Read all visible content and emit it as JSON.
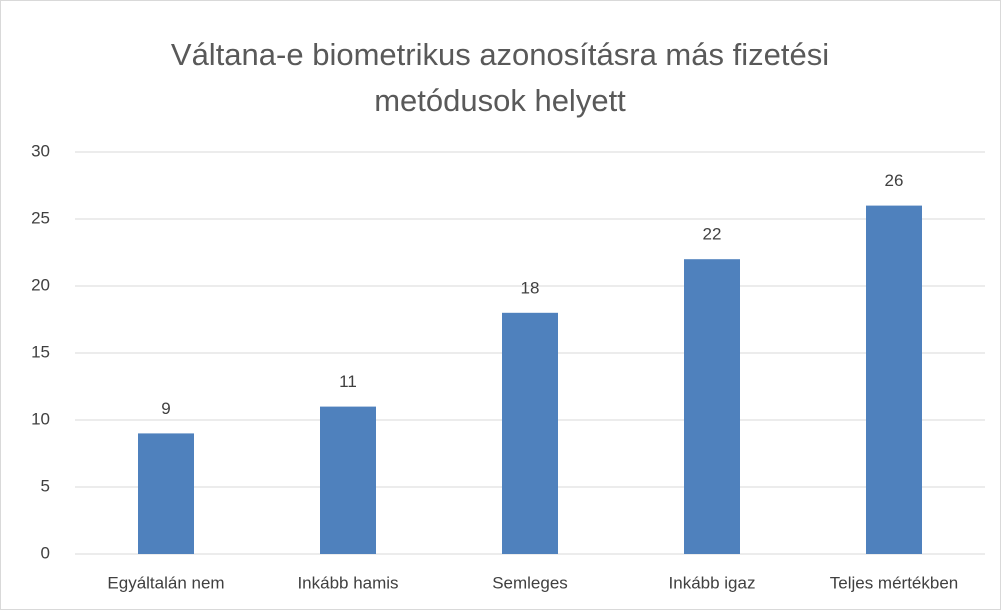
{
  "chart_data": {
    "type": "bar",
    "title": "Váltana-e biometrikus azonosításra más fizetési metódusok helyett",
    "categories": [
      "Egyáltalán nem",
      "Inkább hamis",
      "Semleges",
      "Inkább igaz",
      "Teljes mértékben"
    ],
    "values": [
      9,
      11,
      18,
      22,
      26
    ],
    "color": "#4f81bd",
    "ylim": [
      0,
      30
    ],
    "yticks": [
      0,
      5,
      10,
      15,
      20,
      25,
      30
    ],
    "grid": true
  }
}
